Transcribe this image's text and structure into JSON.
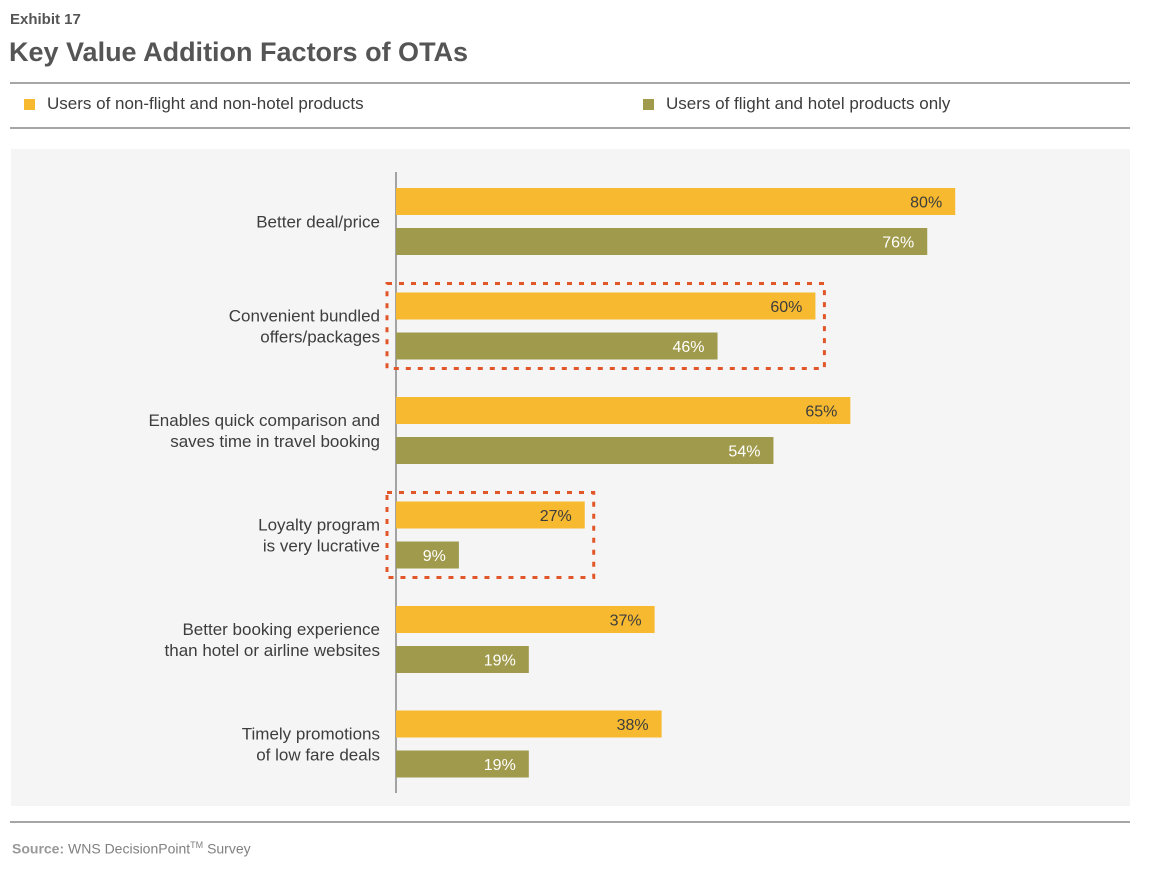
{
  "header": {
    "exhibit": "Exhibit 17",
    "title": "Key Value Addition Factors of OTAs"
  },
  "footer": {
    "source_label": "Source:",
    "source_text": "WNS DecisionPoint",
    "source_mark": "TM",
    "source_suffix": "Survey"
  },
  "colors": {
    "series_1": "#f6b92f",
    "series_2": "#a09a4c",
    "highlight": "#e2572a",
    "axis": "#888888"
  },
  "chart_data": {
    "type": "bar",
    "orientation": "horizontal",
    "title": "Key Value Addition Factors of OTAs",
    "xlim": [
      0,
      100
    ],
    "grid": false,
    "legend_position": "top",
    "value_suffix": "%",
    "categories": [
      [
        "Better deal/price"
      ],
      [
        "Convenient bundled",
        "offers/packages"
      ],
      [
        "Enables quick comparison and",
        "saves time in travel booking"
      ],
      [
        "Loyalty program",
        "is very lucrative"
      ],
      [
        "Better booking experience",
        "than hotel or airline websites"
      ],
      [
        "Timely promotions",
        "of low fare deals"
      ]
    ],
    "series": [
      {
        "name": "Users of non-flight and non-hotel products",
        "values": [
          80,
          60,
          65,
          27,
          37,
          38
        ]
      },
      {
        "name": "Users of flight and hotel products only",
        "values": [
          76,
          46,
          54,
          9,
          19,
          19
        ]
      }
    ],
    "highlighted_categories": [
      1,
      3
    ]
  }
}
